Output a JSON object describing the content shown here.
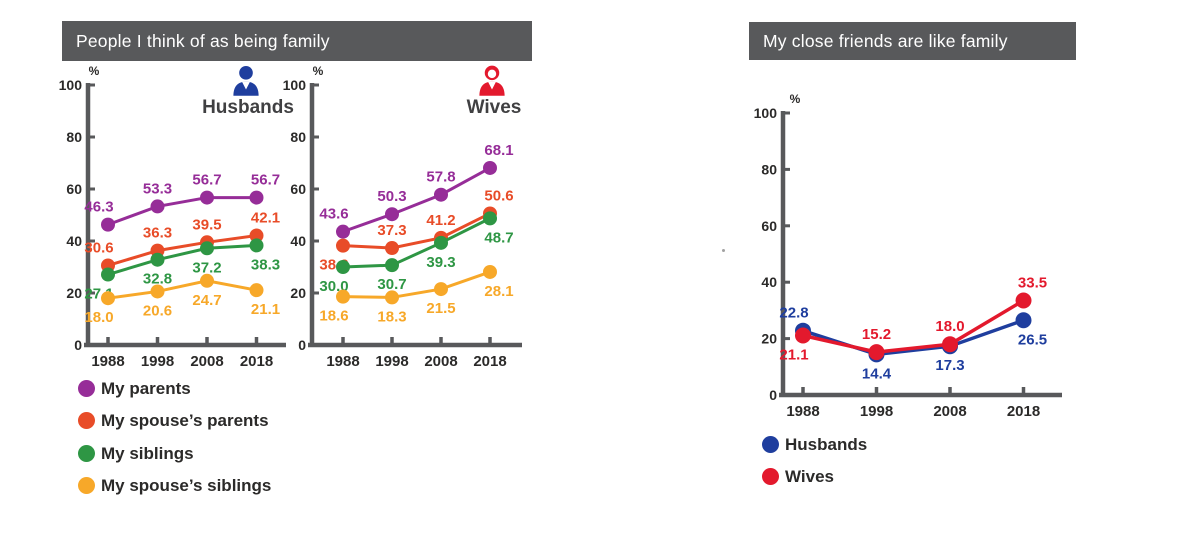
{
  "left_panel": {
    "title": "People I think of as being family"
  },
  "right_panel": {
    "title": "My close friends are like family"
  },
  "colors": {
    "title_bar": "#58595B",
    "axis": "#58595B",
    "purple": "#962D98",
    "orange_red": "#E84C28",
    "green": "#2E9644",
    "amber": "#F7A829",
    "blue": "#1F3E9E",
    "red": "#E3192D"
  },
  "chart_data": [
    {
      "id": "husbands",
      "type": "line",
      "title": "Husbands",
      "icon": "man-icon",
      "icon_color": "#1F3E9E",
      "unit": "%",
      "categories": [
        "1988",
        "1998",
        "2008",
        "2018"
      ],
      "ylim": [
        0,
        100
      ],
      "yticks": [
        0,
        20,
        40,
        60,
        80,
        100
      ],
      "grid": false,
      "series": [
        {
          "name": "My parents",
          "color": "#962D98",
          "values": [
            46.3,
            53.3,
            56.7,
            56.7
          ],
          "label_pos": [
            "above",
            "above",
            "above",
            "above"
          ]
        },
        {
          "name": "My spouse’s parents",
          "color": "#E84C28",
          "values": [
            30.6,
            36.3,
            39.5,
            42.1
          ],
          "label_pos": [
            "above",
            "above",
            "above",
            "above"
          ]
        },
        {
          "name": "My siblings",
          "color": "#2E9644",
          "values": [
            27.1,
            32.8,
            37.2,
            38.3
          ],
          "label_pos": [
            "below",
            "below",
            "below",
            "below"
          ]
        },
        {
          "name": "My spouse’s siblings",
          "color": "#F7A829",
          "values": [
            18.0,
            20.6,
            24.7,
            21.1
          ],
          "label_pos": [
            "below",
            "below",
            "below",
            "below"
          ]
        }
      ]
    },
    {
      "id": "wives",
      "type": "line",
      "title": "Wives",
      "icon": "woman-icon",
      "icon_color": "#E3192D",
      "unit": "%",
      "categories": [
        "1988",
        "1998",
        "2008",
        "2018"
      ],
      "ylim": [
        0,
        100
      ],
      "yticks": [
        0,
        20,
        40,
        60,
        80,
        100
      ],
      "grid": false,
      "series": [
        {
          "name": "My parents",
          "color": "#962D98",
          "values": [
            43.6,
            50.3,
            57.8,
            68.1
          ],
          "label_pos": [
            "above",
            "above",
            "above",
            "above"
          ]
        },
        {
          "name": "My spouse’s parents",
          "color": "#E84C28",
          "values": [
            38.2,
            37.3,
            41.2,
            50.6
          ],
          "label_pos": [
            "below",
            "above",
            "above",
            "above"
          ]
        },
        {
          "name": "My siblings",
          "color": "#2E9644",
          "values": [
            30.0,
            30.7,
            39.3,
            48.7
          ],
          "label_pos": [
            "below",
            "below",
            "below",
            "below"
          ]
        },
        {
          "name": "My spouse’s siblings",
          "color": "#F7A829",
          "values": [
            18.6,
            18.3,
            21.5,
            28.1
          ],
          "label_pos": [
            "below",
            "below",
            "below",
            "below"
          ]
        }
      ]
    },
    {
      "id": "friends",
      "type": "line",
      "title": "",
      "icon": "",
      "unit": "%",
      "categories": [
        "1988",
        "1998",
        "2008",
        "2018"
      ],
      "ylim": [
        0,
        100
      ],
      "yticks": [
        0,
        20,
        40,
        60,
        80,
        100
      ],
      "grid": false,
      "series": [
        {
          "name": "Husbands",
          "color": "#1F3E9E",
          "values": [
            22.8,
            14.4,
            17.3,
            26.5
          ],
          "label_pos": [
            "above",
            "below",
            "below",
            "below"
          ]
        },
        {
          "name": "Wives",
          "color": "#E3192D",
          "values": [
            21.1,
            15.2,
            18.0,
            33.5
          ],
          "label_pos": [
            "below",
            "above",
            "above",
            "above"
          ]
        }
      ]
    }
  ]
}
